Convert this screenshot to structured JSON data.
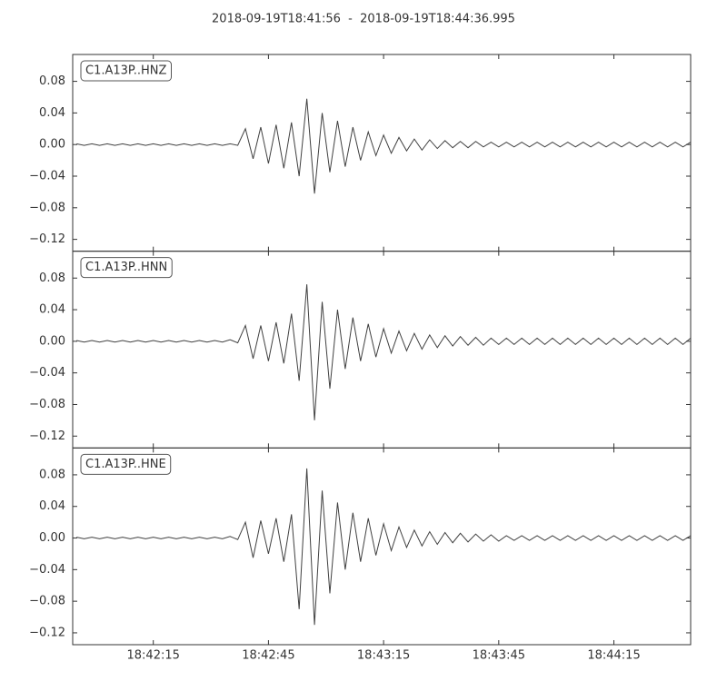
{
  "title": "2018-09-19T18:41:56  -  2018-09-19T18:44:36.995",
  "chart_data": [
    {
      "type": "line",
      "title": "C1.A13P..HNZ",
      "color": "#404040",
      "xlim": [
        "18:41:54",
        "18:44:35"
      ],
      "ylim": [
        -0.135,
        0.114
      ],
      "yticks": [
        0.08,
        0.04,
        {
          "value": 0,
          "label": "0.00"
        },
        {
          "value": -0.04,
          "label": "−0.04"
        },
        {
          "value": -0.08,
          "label": "−0.08"
        },
        {
          "value": -0.12,
          "label": "−0.12"
        }
      ],
      "x": [
        "18:41:55",
        "18:41:57",
        "18:41:59",
        "18:42:01",
        "18:42:03",
        "18:42:05",
        "18:42:07",
        "18:42:09",
        "18:42:11",
        "18:42:13",
        "18:42:15",
        "18:42:17",
        "18:42:19",
        "18:42:21",
        "18:42:23",
        "18:42:25",
        "18:42:27",
        "18:42:29",
        "18:42:31",
        "18:42:33",
        "18:42:35",
        "18:42:37",
        "18:42:39",
        "18:42:41",
        "18:42:43",
        "18:42:45",
        "18:42:47",
        "18:42:49",
        "18:42:51",
        "18:42:53",
        "18:42:55",
        "18:42:57",
        "18:42:59",
        "18:43:01",
        "18:43:03",
        "18:43:05",
        "18:43:07",
        "18:43:09",
        "18:43:11",
        "18:43:13",
        "18:43:15",
        "18:43:17",
        "18:43:19",
        "18:43:21",
        "18:43:23",
        "18:43:25",
        "18:43:27",
        "18:43:29",
        "18:43:31",
        "18:43:33",
        "18:43:35",
        "18:43:37",
        "18:43:39",
        "18:43:41",
        "18:43:43",
        "18:43:45",
        "18:43:47",
        "18:43:49",
        "18:43:51",
        "18:43:53",
        "18:43:55",
        "18:43:57",
        "18:43:59",
        "18:44:01",
        "18:44:03",
        "18:44:05",
        "18:44:07",
        "18:44:09",
        "18:44:11",
        "18:44:13",
        "18:44:15",
        "18:44:17",
        "18:44:19",
        "18:44:21",
        "18:44:23",
        "18:44:25",
        "18:44:27",
        "18:44:29",
        "18:44:31",
        "18:44:33",
        "18:44:35"
      ],
      "values": [
        0.001,
        -0.001,
        0.001,
        -0.001,
        0.001,
        -0.001,
        0.001,
        -0.001,
        0.001,
        -0.001,
        0.001,
        -0.001,
        0.001,
        -0.001,
        0.001,
        -0.001,
        0.001,
        -0.001,
        0.001,
        -0.001,
        0.001,
        -0.001,
        0.02,
        -0.018,
        0.022,
        -0.024,
        0.025,
        -0.03,
        0.028,
        -0.04,
        0.058,
        -0.062,
        0.04,
        -0.035,
        0.03,
        -0.028,
        0.022,
        -0.02,
        0.016,
        -0.014,
        0.012,
        -0.011,
        0.009,
        -0.008,
        0.007,
        -0.007,
        0.006,
        -0.005,
        0.005,
        -0.004,
        0.004,
        -0.004,
        0.004,
        -0.003,
        0.003,
        -0.003,
        0.003,
        -0.003,
        0.003,
        -0.003,
        0.003,
        -0.003,
        0.003,
        -0.003,
        0.003,
        -0.003,
        0.003,
        -0.003,
        0.003,
        -0.003,
        0.003,
        -0.003,
        0.003,
        -0.003,
        0.003,
        -0.003,
        0.003,
        -0.003,
        0.003,
        -0.003,
        0.003
      ]
    },
    {
      "type": "line",
      "title": "C1.A13P..HNN",
      "color": "#404040",
      "xlim": [
        "18:41:54",
        "18:44:35"
      ],
      "ylim": [
        -0.135,
        0.114
      ],
      "yticks": [
        0.08,
        0.04,
        {
          "value": 0,
          "label": "0.00"
        },
        {
          "value": -0.04,
          "label": "−0.04"
        },
        {
          "value": -0.08,
          "label": "−0.08"
        },
        {
          "value": -0.12,
          "label": "−0.12"
        }
      ],
      "x": [
        "18:41:55",
        "18:41:57",
        "18:41:59",
        "18:42:01",
        "18:42:03",
        "18:42:05",
        "18:42:07",
        "18:42:09",
        "18:42:11",
        "18:42:13",
        "18:42:15",
        "18:42:17",
        "18:42:19",
        "18:42:21",
        "18:42:23",
        "18:42:25",
        "18:42:27",
        "18:42:29",
        "18:42:31",
        "18:42:33",
        "18:42:35",
        "18:42:37",
        "18:42:39",
        "18:42:41",
        "18:42:43",
        "18:42:45",
        "18:42:47",
        "18:42:49",
        "18:42:51",
        "18:42:53",
        "18:42:55",
        "18:42:57",
        "18:42:59",
        "18:43:01",
        "18:43:03",
        "18:43:05",
        "18:43:07",
        "18:43:09",
        "18:43:11",
        "18:43:13",
        "18:43:15",
        "18:43:17",
        "18:43:19",
        "18:43:21",
        "18:43:23",
        "18:43:25",
        "18:43:27",
        "18:43:29",
        "18:43:31",
        "18:43:33",
        "18:43:35",
        "18:43:37",
        "18:43:39",
        "18:43:41",
        "18:43:43",
        "18:43:45",
        "18:43:47",
        "18:43:49",
        "18:43:51",
        "18:43:53",
        "18:43:55",
        "18:43:57",
        "18:43:59",
        "18:44:01",
        "18:44:03",
        "18:44:05",
        "18:44:07",
        "18:44:09",
        "18:44:11",
        "18:44:13",
        "18:44:15",
        "18:44:17",
        "18:44:19",
        "18:44:21",
        "18:44:23",
        "18:44:25",
        "18:44:27",
        "18:44:29",
        "18:44:31",
        "18:44:33",
        "18:44:35"
      ],
      "values": [
        0.001,
        -0.001,
        0.001,
        -0.001,
        0.001,
        -0.001,
        0.001,
        -0.001,
        0.001,
        -0.001,
        0.001,
        -0.001,
        0.001,
        -0.001,
        0.001,
        -0.001,
        0.001,
        -0.001,
        0.001,
        -0.001,
        0.002,
        -0.002,
        0.02,
        -0.022,
        0.02,
        -0.025,
        0.024,
        -0.028,
        0.035,
        -0.05,
        0.072,
        -0.1,
        0.05,
        -0.06,
        0.04,
        -0.035,
        0.03,
        -0.025,
        0.022,
        -0.02,
        0.016,
        -0.015,
        0.013,
        -0.012,
        0.01,
        -0.01,
        0.008,
        -0.008,
        0.007,
        -0.006,
        0.006,
        -0.005,
        0.005,
        -0.005,
        0.004,
        -0.004,
        0.004,
        -0.004,
        0.004,
        -0.004,
        0.004,
        -0.004,
        0.004,
        -0.004,
        0.004,
        -0.004,
        0.004,
        -0.004,
        0.004,
        -0.004,
        0.004,
        -0.004,
        0.004,
        -0.004,
        0.004,
        -0.004,
        0.004,
        -0.004,
        0.004,
        -0.004,
        0.004
      ]
    },
    {
      "type": "line",
      "title": "C1.A13P..HNE",
      "color": "#404040",
      "xlim": [
        "18:41:54",
        "18:44:35"
      ],
      "ylim": [
        -0.135,
        0.114
      ],
      "yticks": [
        0.08,
        0.04,
        {
          "value": 0,
          "label": "0.00"
        },
        {
          "value": -0.04,
          "label": "−0.04"
        },
        {
          "value": -0.08,
          "label": "−0.08"
        },
        {
          "value": -0.12,
          "label": "−0.12"
        }
      ],
      "xticks": [
        "18:42:15",
        "18:42:45",
        "18:43:15",
        "18:43:45",
        "18:44:15"
      ],
      "x": [
        "18:41:55",
        "18:41:57",
        "18:41:59",
        "18:42:01",
        "18:42:03",
        "18:42:05",
        "18:42:07",
        "18:42:09",
        "18:42:11",
        "18:42:13",
        "18:42:15",
        "18:42:17",
        "18:42:19",
        "18:42:21",
        "18:42:23",
        "18:42:25",
        "18:42:27",
        "18:42:29",
        "18:42:31",
        "18:42:33",
        "18:42:35",
        "18:42:37",
        "18:42:39",
        "18:42:41",
        "18:42:43",
        "18:42:45",
        "18:42:47",
        "18:42:49",
        "18:42:51",
        "18:42:53",
        "18:42:55",
        "18:42:57",
        "18:42:59",
        "18:43:01",
        "18:43:03",
        "18:43:05",
        "18:43:07",
        "18:43:09",
        "18:43:11",
        "18:43:13",
        "18:43:15",
        "18:43:17",
        "18:43:19",
        "18:43:21",
        "18:43:23",
        "18:43:25",
        "18:43:27",
        "18:43:29",
        "18:43:31",
        "18:43:33",
        "18:43:35",
        "18:43:37",
        "18:43:39",
        "18:43:41",
        "18:43:43",
        "18:43:45",
        "18:43:47",
        "18:43:49",
        "18:43:51",
        "18:43:53",
        "18:43:55",
        "18:43:57",
        "18:43:59",
        "18:44:01",
        "18:44:03",
        "18:44:05",
        "18:44:07",
        "18:44:09",
        "18:44:11",
        "18:44:13",
        "18:44:15",
        "18:44:17",
        "18:44:19",
        "18:44:21",
        "18:44:23",
        "18:44:25",
        "18:44:27",
        "18:44:29",
        "18:44:31",
        "18:44:33",
        "18:44:35"
      ],
      "values": [
        0.001,
        -0.001,
        0.001,
        -0.001,
        0.001,
        -0.001,
        0.001,
        -0.001,
        0.001,
        -0.001,
        0.001,
        -0.001,
        0.001,
        -0.001,
        0.001,
        -0.001,
        0.001,
        -0.001,
        0.001,
        -0.001,
        0.002,
        -0.002,
        0.02,
        -0.025,
        0.022,
        -0.02,
        0.025,
        -0.03,
        0.03,
        -0.09,
        0.088,
        -0.11,
        0.06,
        -0.07,
        0.045,
        -0.04,
        0.032,
        -0.03,
        0.025,
        -0.022,
        0.018,
        -0.016,
        0.014,
        -0.012,
        0.01,
        -0.01,
        0.008,
        -0.008,
        0.007,
        -0.006,
        0.006,
        -0.005,
        0.005,
        -0.004,
        0.004,
        -0.004,
        0.003,
        -0.003,
        0.003,
        -0.003,
        0.003,
        -0.003,
        0.003,
        -0.003,
        0.003,
        -0.003,
        0.003,
        -0.003,
        0.003,
        -0.003,
        0.003,
        -0.003,
        0.003,
        -0.003,
        0.003,
        -0.003,
        0.003,
        -0.003,
        0.003,
        -0.003,
        0.003
      ]
    }
  ]
}
